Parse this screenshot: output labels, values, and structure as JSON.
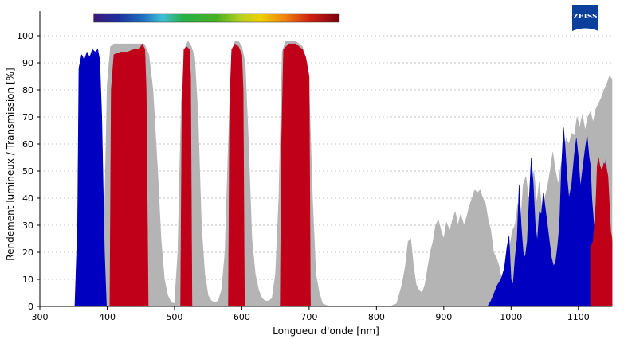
{
  "chart_data": {
    "type": "area",
    "title": "",
    "xlabel": "Longueur d'onde [nm]",
    "ylabel": "Rendement lumineux / Transmission [%]",
    "xlim": [
      300,
      1150
    ],
    "ylim": [
      0,
      105
    ],
    "x_ticks": [
      300,
      400,
      500,
      600,
      700,
      800,
      900,
      1000,
      1100
    ],
    "y_ticks": [
      0,
      10,
      20,
      30,
      40,
      50,
      60,
      70,
      80,
      90,
      100
    ],
    "grid": "horizontal dotted",
    "spectrum_bar": {
      "x_range": [
        380,
        745
      ]
    },
    "logo": {
      "text": "ZEISS",
      "color": "#0a3f9b"
    },
    "series": [
      {
        "color": "#b4b4b4",
        "points": [
          [
            390,
            0
          ],
          [
            395,
            20
          ],
          [
            400,
            82
          ],
          [
            405,
            96
          ],
          [
            410,
            97
          ],
          [
            430,
            97
          ],
          [
            445,
            97
          ],
          [
            455,
            97
          ],
          [
            462,
            93
          ],
          [
            468,
            80
          ],
          [
            475,
            50
          ],
          [
            480,
            25
          ],
          [
            485,
            10
          ],
          [
            490,
            4
          ],
          [
            495,
            1.5
          ],
          [
            500,
            1
          ],
          [
            505,
            20
          ],
          [
            510,
            75
          ],
          [
            515,
            95
          ],
          [
            520,
            98
          ],
          [
            525,
            96
          ],
          [
            530,
            92
          ],
          [
            535,
            70
          ],
          [
            540,
            30
          ],
          [
            545,
            12
          ],
          [
            550,
            4
          ],
          [
            555,
            2
          ],
          [
            560,
            1.5
          ],
          [
            565,
            2
          ],
          [
            570,
            6
          ],
          [
            575,
            20
          ],
          [
            580,
            60
          ],
          [
            585,
            94
          ],
          [
            590,
            98
          ],
          [
            595,
            98
          ],
          [
            600,
            96
          ],
          [
            605,
            90
          ],
          [
            610,
            60
          ],
          [
            615,
            25
          ],
          [
            620,
            12
          ],
          [
            625,
            6
          ],
          [
            630,
            3
          ],
          [
            635,
            2
          ],
          [
            640,
            2
          ],
          [
            645,
            3
          ],
          [
            650,
            12
          ],
          [
            655,
            40
          ],
          [
            660,
            94
          ],
          [
            665,
            98
          ],
          [
            680,
            98
          ],
          [
            690,
            96
          ],
          [
            695,
            92
          ],
          [
            700,
            80
          ],
          [
            705,
            40
          ],
          [
            710,
            12
          ],
          [
            715,
            5
          ],
          [
            720,
            1
          ],
          [
            730,
            0
          ],
          [
            820,
            0
          ],
          [
            830,
            1
          ],
          [
            838,
            8
          ],
          [
            843,
            15
          ],
          [
            847,
            24
          ],
          [
            851,
            25
          ],
          [
            855,
            15
          ],
          [
            859,
            8
          ],
          [
            863,
            6
          ],
          [
            868,
            5
          ],
          [
            872,
            8
          ],
          [
            876,
            14
          ],
          [
            880,
            20
          ],
          [
            884,
            24
          ],
          [
            888,
            30
          ],
          [
            892,
            32
          ],
          [
            896,
            28
          ],
          [
            900,
            25
          ],
          [
            904,
            31
          ],
          [
            909,
            28
          ],
          [
            913,
            32
          ],
          [
            917,
            35
          ],
          [
            921,
            30
          ],
          [
            925,
            34
          ],
          [
            930,
            30
          ],
          [
            934,
            33
          ],
          [
            938,
            37
          ],
          [
            942,
            40
          ],
          [
            946,
            43
          ],
          [
            950,
            42
          ],
          [
            954,
            43
          ],
          [
            958,
            40
          ],
          [
            962,
            38
          ],
          [
            966,
            32
          ],
          [
            970,
            28
          ],
          [
            974,
            20
          ],
          [
            978,
            18
          ],
          [
            982,
            15
          ],
          [
            986,
            10
          ],
          [
            990,
            14
          ],
          [
            994,
            20
          ],
          [
            998,
            22
          ],
          [
            1002,
            28
          ],
          [
            1006,
            30
          ],
          [
            1010,
            38
          ],
          [
            1014,
            30
          ],
          [
            1018,
            45
          ],
          [
            1022,
            48
          ],
          [
            1026,
            40
          ],
          [
            1030,
            42
          ],
          [
            1034,
            50
          ],
          [
            1038,
            38
          ],
          [
            1042,
            46
          ],
          [
            1046,
            35
          ],
          [
            1050,
            40
          ],
          [
            1054,
            44
          ],
          [
            1058,
            50
          ],
          [
            1062,
            57
          ],
          [
            1066,
            50
          ],
          [
            1070,
            45
          ],
          [
            1074,
            52
          ],
          [
            1078,
            58
          ],
          [
            1082,
            62
          ],
          [
            1086,
            60
          ],
          [
            1090,
            64
          ],
          [
            1094,
            63
          ],
          [
            1098,
            70
          ],
          [
            1102,
            66
          ],
          [
            1106,
            71
          ],
          [
            1110,
            65
          ],
          [
            1114,
            70
          ],
          [
            1118,
            72
          ],
          [
            1122,
            68
          ],
          [
            1126,
            73
          ],
          [
            1130,
            75
          ],
          [
            1134,
            77
          ],
          [
            1138,
            80
          ],
          [
            1142,
            82
          ],
          [
            1146,
            85
          ],
          [
            1150,
            84
          ],
          [
            1150,
            0
          ]
        ]
      },
      {
        "color": "#0000c0",
        "points": [
          [
            352,
            0
          ],
          [
            356,
            30
          ],
          [
            358,
            88
          ],
          [
            362,
            93
          ],
          [
            366,
            91
          ],
          [
            370,
            94
          ],
          [
            374,
            92
          ],
          [
            378,
            95
          ],
          [
            382,
            94
          ],
          [
            386,
            95
          ],
          [
            389,
            91
          ],
          [
            392,
            70
          ],
          [
            396,
            20
          ],
          [
            399,
            0
          ],
          [
            965,
            0
          ],
          [
            970,
            2
          ],
          [
            975,
            5
          ],
          [
            980,
            8
          ],
          [
            985,
            10
          ],
          [
            990,
            14
          ],
          [
            994,
            22
          ],
          [
            997,
            26
          ],
          [
            1000,
            10
          ],
          [
            1003,
            8
          ],
          [
            1006,
            18
          ],
          [
            1009,
            25
          ],
          [
            1012,
            45
          ],
          [
            1015,
            30
          ],
          [
            1018,
            20
          ],
          [
            1021,
            18
          ],
          [
            1024,
            24
          ],
          [
            1027,
            40
          ],
          [
            1030,
            55
          ],
          [
            1033,
            45
          ],
          [
            1036,
            30
          ],
          [
            1039,
            24
          ],
          [
            1042,
            35
          ],
          [
            1045,
            34
          ],
          [
            1048,
            42
          ],
          [
            1051,
            36
          ],
          [
            1054,
            30
          ],
          [
            1057,
            24
          ],
          [
            1060,
            18
          ],
          [
            1063,
            15
          ],
          [
            1066,
            16
          ],
          [
            1069,
            22
          ],
          [
            1072,
            30
          ],
          [
            1075,
            52
          ],
          [
            1078,
            66
          ],
          [
            1080,
            60
          ],
          [
            1083,
            48
          ],
          [
            1086,
            40
          ],
          [
            1090,
            45
          ],
          [
            1094,
            56
          ],
          [
            1097,
            62
          ],
          [
            1100,
            55
          ],
          [
            1103,
            44
          ],
          [
            1106,
            50
          ],
          [
            1110,
            58
          ],
          [
            1113,
            63
          ],
          [
            1116,
            55
          ],
          [
            1118,
            52
          ],
          [
            1120,
            40
          ],
          [
            1123,
            30
          ],
          [
            1126,
            26
          ],
          [
            1130,
            30
          ],
          [
            1134,
            36
          ],
          [
            1138,
            45
          ],
          [
            1141,
            55
          ],
          [
            1143,
            42
          ],
          [
            1145,
            30
          ],
          [
            1148,
            26
          ],
          [
            1150,
            24
          ],
          [
            1150,
            0
          ]
        ]
      },
      {
        "color": "#c00018",
        "points": [
          [
            404,
            0
          ],
          [
            406,
            80
          ],
          [
            410,
            93
          ],
          [
            420,
            94
          ],
          [
            430,
            94
          ],
          [
            440,
            95
          ],
          [
            448,
            95
          ],
          [
            452,
            97
          ],
          [
            456,
            95
          ],
          [
            458,
            80
          ],
          [
            461,
            0
          ],
          [
            509,
            0
          ],
          [
            511,
            70
          ],
          [
            514,
            95
          ],
          [
            518,
            96
          ],
          [
            522,
            95
          ],
          [
            524,
            85
          ],
          [
            526,
            0
          ],
          [
            580,
            0
          ],
          [
            582,
            75
          ],
          [
            585,
            95
          ],
          [
            590,
            97
          ],
          [
            595,
            96
          ],
          [
            600,
            93
          ],
          [
            602,
            80
          ],
          [
            604,
            0
          ],
          [
            657,
            0
          ],
          [
            659,
            60
          ],
          [
            662,
            95
          ],
          [
            670,
            97
          ],
          [
            680,
            97
          ],
          [
            690,
            95
          ],
          [
            695,
            92
          ],
          [
            700,
            85
          ],
          [
            702,
            0
          ],
          [
            1118,
            0
          ],
          [
            1118,
            22
          ],
          [
            1122,
            24
          ],
          [
            1126,
            38
          ],
          [
            1128,
            52
          ],
          [
            1130,
            55
          ],
          [
            1132,
            52
          ],
          [
            1135,
            50
          ],
          [
            1138,
            53
          ],
          [
            1141,
            52
          ],
          [
            1144,
            48
          ],
          [
            1146,
            38
          ],
          [
            1148,
            28
          ],
          [
            1150,
            25
          ],
          [
            1150,
            0
          ]
        ]
      }
    ]
  }
}
